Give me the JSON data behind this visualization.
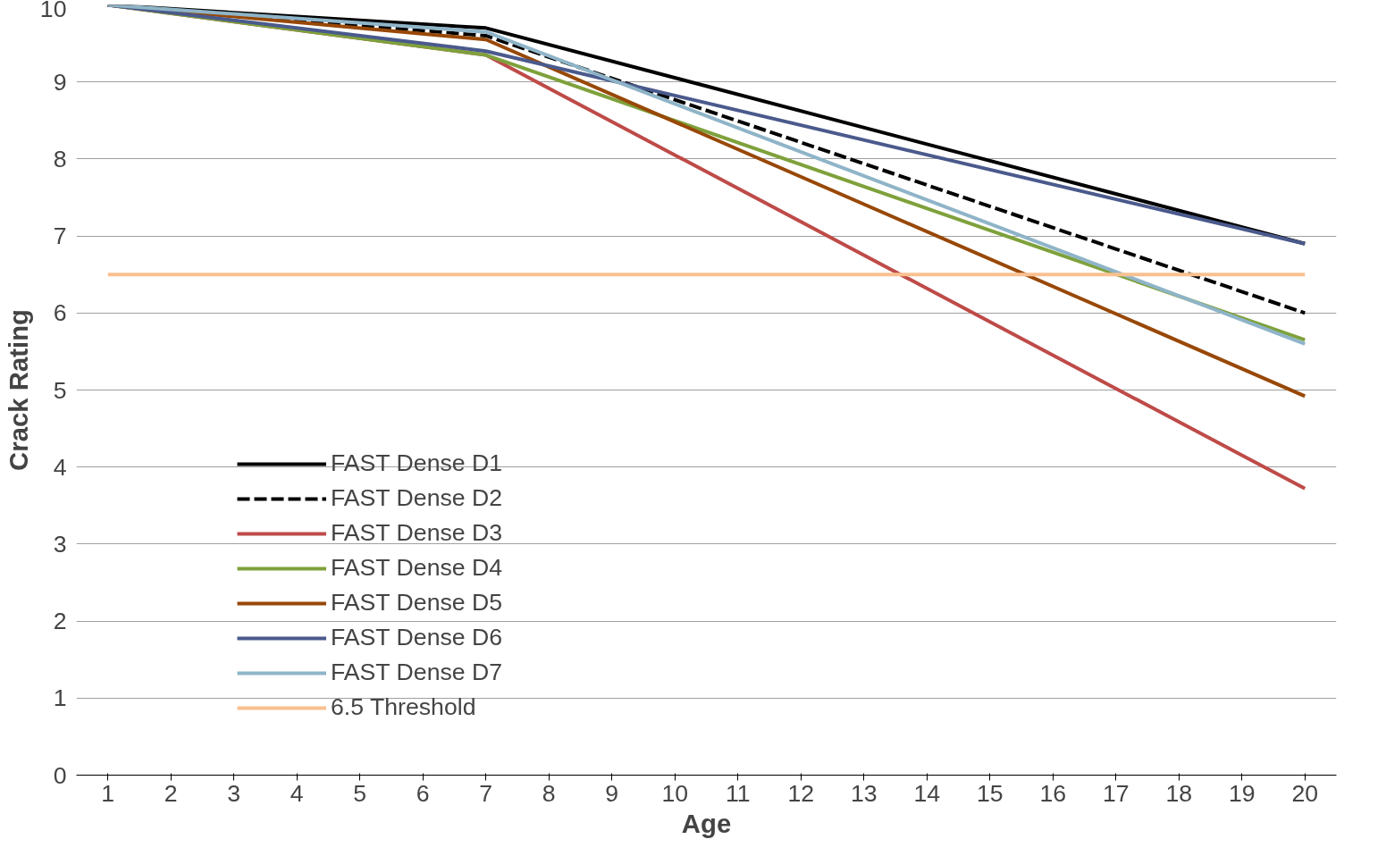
{
  "chart_data": {
    "type": "line",
    "xlabel": "Age",
    "ylabel": "Crack Rating",
    "xlim": [
      0.5,
      20.5
    ],
    "xticks": [
      1,
      2,
      3,
      4,
      5,
      6,
      7,
      8,
      9,
      10,
      11,
      12,
      13,
      14,
      15,
      16,
      17,
      18,
      19,
      20
    ],
    "ylim": [
      0,
      10
    ],
    "yticks": [
      0,
      1,
      2,
      3,
      4,
      5,
      6,
      7,
      8,
      9,
      10
    ],
    "grid": "y",
    "legend": "left",
    "marker": "none",
    "line_style": "solid",
    "series": [
      {
        "name": "FAST Dense D1",
        "color": "#000000",
        "x": [
          1,
          7,
          20
        ],
        "values": [
          10,
          9.7,
          6.9
        ]
      },
      {
        "name": "FAST Dense D2",
        "color": "#000000",
        "line_style": "dashed",
        "x": [
          1,
          7,
          20
        ],
        "values": [
          10,
          9.6,
          6.0
        ]
      },
      {
        "name": "FAST Dense D3",
        "color": "#be4b48",
        "x": [
          1,
          7,
          20
        ],
        "values": [
          10,
          9.35,
          3.72
        ]
      },
      {
        "name": "FAST Dense D4",
        "color": "#7ea13b",
        "x": [
          1,
          7,
          20
        ],
        "values": [
          10,
          9.35,
          5.65
        ]
      },
      {
        "name": "FAST Dense D5",
        "color": "#984807",
        "x": [
          1,
          7,
          20
        ],
        "values": [
          10,
          9.55,
          4.92
        ]
      },
      {
        "name": "FAST Dense D6",
        "color": "#4a5a8c",
        "x": [
          1,
          7,
          20
        ],
        "values": [
          10,
          9.4,
          6.9
        ]
      },
      {
        "name": "FAST Dense D7",
        "color": "#8fb4c8",
        "x": [
          1,
          7,
          20
        ],
        "values": [
          10,
          9.65,
          5.6
        ]
      },
      {
        "name": "6.5 Threshold",
        "color": "#fac090",
        "x": [
          1,
          20
        ],
        "values": [
          6.5,
          6.5
        ]
      }
    ]
  }
}
